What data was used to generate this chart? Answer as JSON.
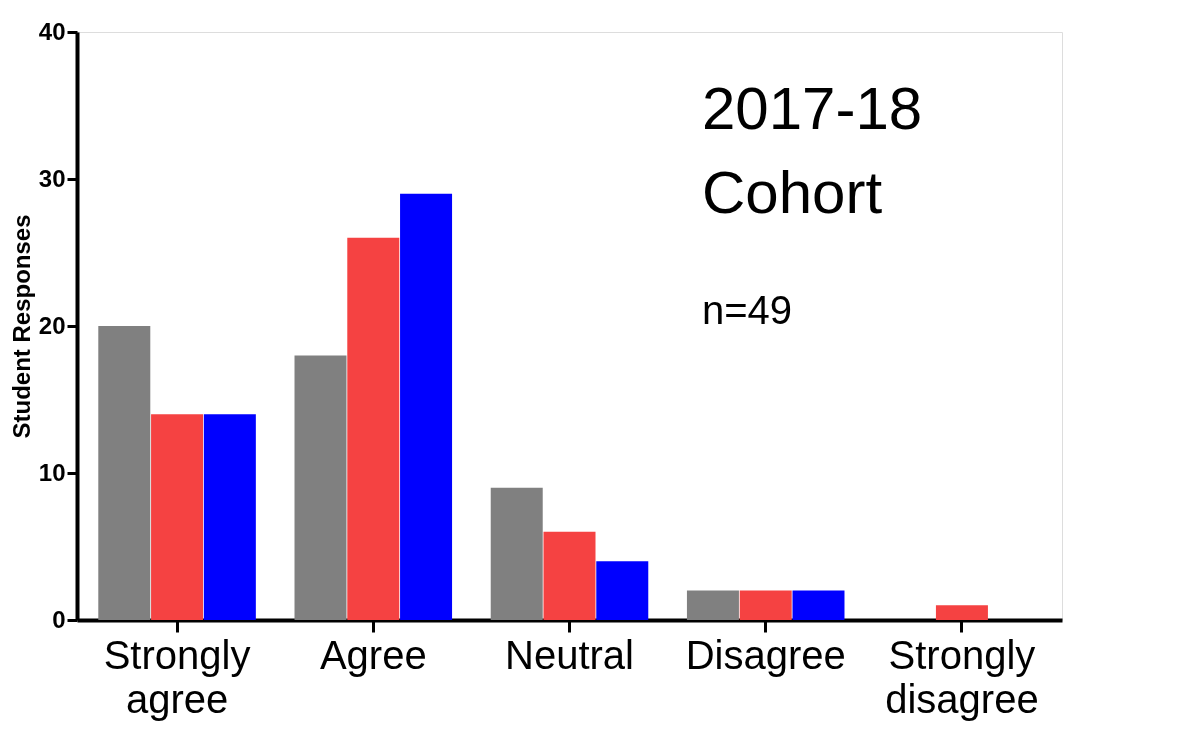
{
  "chart_data": {
    "type": "bar",
    "ylabel": "Student Responses",
    "categories": [
      "Strongly agree",
      "Agree",
      "Neutral",
      "Disagree",
      "Strongly disagree"
    ],
    "series": [
      {
        "color": "#808080",
        "values": [
          20,
          18,
          9,
          2,
          0
        ]
      },
      {
        "color": "#f54242",
        "values": [
          14,
          26,
          6,
          2,
          1
        ]
      },
      {
        "color": "#0000ff",
        "values": [
          14,
          29,
          4,
          2,
          0
        ]
      }
    ],
    "ylim": [
      0,
      40
    ],
    "yticks": [
      0,
      10,
      20,
      30,
      40
    ],
    "annotations": [
      "2017-18 Cohort",
      "n=49"
    ],
    "grid": false,
    "legend": false
  }
}
